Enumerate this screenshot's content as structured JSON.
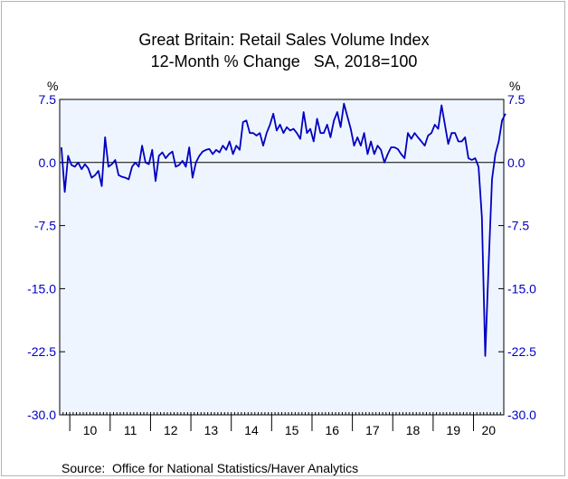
{
  "chart_data": {
    "type": "line",
    "title": "Great Britain: Retail Sales Volume Index",
    "subtitle": "12-Month % Change   SA, 2018=100",
    "ylabel_left": "%",
    "ylabel_right": "%",
    "ylim": [
      -30,
      7.5
    ],
    "y_ticks": [
      "7.5",
      "0.0",
      "-7.5",
      "-15.0",
      "-22.5",
      "-30.0"
    ],
    "x_ticks": [
      "10",
      "11",
      "12",
      "13",
      "14",
      "15",
      "16",
      "17",
      "18",
      "19",
      "20"
    ],
    "x_start": "2009-10",
    "x_end": "2020-09",
    "zero_line": true,
    "colors": {
      "line": "#0000c0",
      "plot_bg": "#eef5ff",
      "tick_text": "#0000c0"
    },
    "series": [
      {
        "values": [
          1.8,
          -3.5,
          0.8,
          -0.3,
          -0.5,
          0.0,
          -0.8,
          -0.2,
          -0.7,
          -1.8,
          -1.5,
          -1.0,
          -2.8,
          3.0,
          -0.5,
          -0.2,
          0.3,
          -1.5,
          -1.7,
          -1.8,
          -2.0,
          -0.5,
          0.0,
          -0.5,
          2.0,
          0.0,
          -0.2,
          1.5,
          -2.2,
          0.8,
          1.2,
          0.5,
          1.0,
          1.3,
          -0.5,
          -0.3,
          0.2,
          -0.5,
          1.8,
          -1.8,
          0.0,
          0.8,
          1.3,
          1.5,
          1.6,
          1.0,
          1.5,
          1.2,
          2.0,
          1.5,
          2.5,
          1.0,
          2.0,
          1.5,
          4.8,
          5.0,
          3.5,
          3.5,
          3.2,
          3.5,
          2.0,
          3.5,
          4.5,
          5.8,
          3.8,
          4.5,
          3.5,
          4.2,
          3.8,
          4.0,
          3.5,
          2.8,
          6.0,
          3.5,
          4.0,
          2.5,
          5.2,
          3.5,
          3.5,
          4.5,
          3.0,
          5.0,
          6.0,
          4.2,
          7.0,
          5.5,
          4.0,
          2.0,
          3.0,
          2.0,
          3.5,
          1.0,
          2.5,
          1.0,
          2.0,
          1.5,
          0.0,
          1.0,
          1.8,
          1.8,
          1.6,
          1.0,
          0.5,
          3.5,
          2.8,
          3.5,
          3.0,
          2.5,
          2.0,
          3.2,
          3.5,
          4.5,
          4.0,
          6.8,
          4.5,
          2.2,
          3.5,
          3.5,
          2.5,
          2.5,
          3.0,
          0.5,
          0.3,
          0.5,
          -0.5,
          -6.5,
          -23.0,
          -12.0,
          -2.0,
          1.0,
          2.5,
          5.0,
          5.8
        ]
      }
    ]
  },
  "source_text": "Source:  Office for National Statistics/Haver Analytics"
}
